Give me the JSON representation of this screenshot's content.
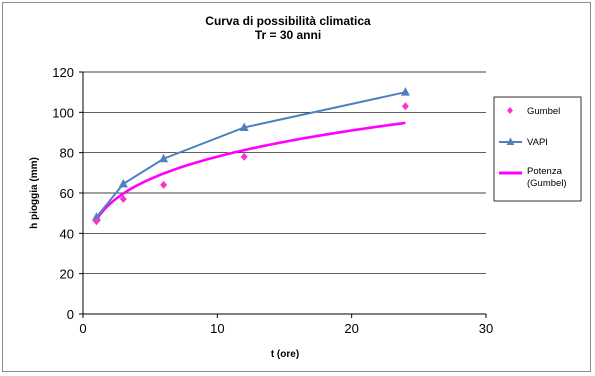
{
  "chart_data": {
    "type": "line",
    "title_line1": "Curva di possibilità climatica",
    "title_line2": "Tr = 30 anni",
    "xlabel": "t (ore)",
    "ylabel": "h pioggia (mm)",
    "xlim": [
      0,
      30
    ],
    "ylim": [
      0,
      120
    ],
    "xticks": [
      0,
      10,
      20,
      30
    ],
    "yticks": [
      0,
      20,
      40,
      60,
      80,
      100,
      120
    ],
    "grid": "horizontal",
    "legend_position": "right",
    "series": [
      {
        "name": "Gumbel",
        "kind": "markers",
        "marker": "diamond",
        "color": "#ff33cc",
        "x": [
          1,
          3,
          6,
          12,
          24
        ],
        "y": [
          46,
          57,
          64,
          78,
          103
        ]
      },
      {
        "name": "VAPI",
        "kind": "line-markers",
        "marker": "triangle",
        "color": "#4f81bd",
        "x": [
          1,
          3,
          6,
          12,
          24
        ],
        "y": [
          48,
          64.5,
          77,
          92.5,
          110
        ]
      },
      {
        "name_line1": "Potenza",
        "name_line2": "(Gumbel)",
        "kind": "power-fit",
        "color": "#ff00ff",
        "coef": 46.8,
        "exp": 0.222,
        "x_range": [
          1,
          24
        ]
      }
    ]
  }
}
